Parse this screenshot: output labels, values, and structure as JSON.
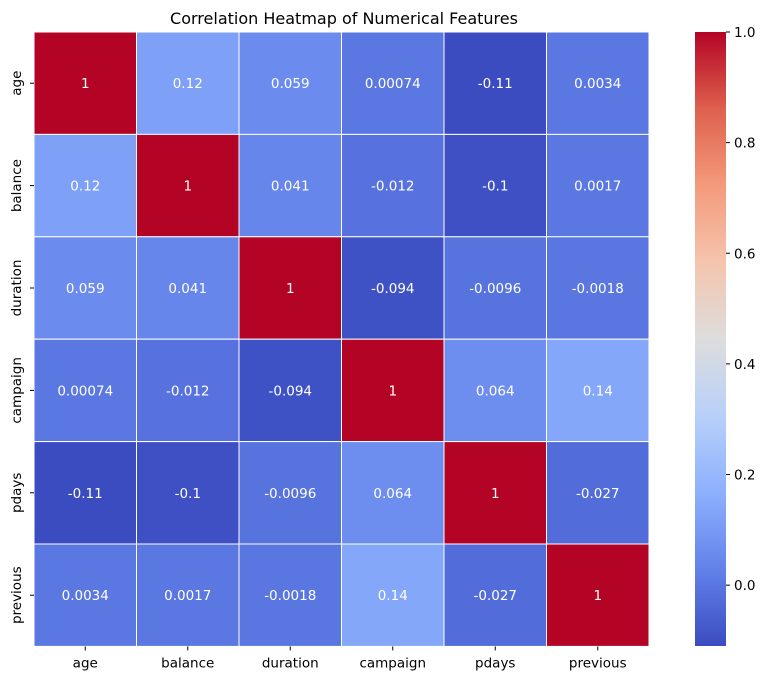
{
  "chart_data": {
    "type": "heatmap",
    "title": "Correlation Heatmap of Numerical Features",
    "xlabel": "",
    "ylabel": "",
    "x_labels": [
      "age",
      "balance",
      "duration",
      "campaign",
      "pdays",
      "previous"
    ],
    "y_labels": [
      "age",
      "balance",
      "duration",
      "campaign",
      "pdays",
      "previous"
    ],
    "values": [
      [
        1,
        0.12,
        0.059,
        0.00074,
        -0.11,
        0.0034
      ],
      [
        0.12,
        1,
        0.041,
        -0.012,
        -0.1,
        0.0017
      ],
      [
        0.059,
        0.041,
        1,
        -0.094,
        -0.0096,
        -0.0018
      ],
      [
        0.00074,
        -0.012,
        -0.094,
        1,
        0.064,
        0.14
      ],
      [
        -0.11,
        -0.1,
        -0.0096,
        0.064,
        1,
        -0.027
      ],
      [
        0.0034,
        0.0017,
        -0.0018,
        0.14,
        -0.027,
        1
      ]
    ],
    "cell_text": [
      [
        "1",
        "0.12",
        "0.059",
        "0.00074",
        "-0.11",
        "0.0034"
      ],
      [
        "0.12",
        "1",
        "0.041",
        "-0.012",
        "-0.1",
        "0.0017"
      ],
      [
        "0.059",
        "0.041",
        "1",
        "-0.094",
        "-0.0096",
        "-0.0018"
      ],
      [
        "0.00074",
        "-0.012",
        "-0.094",
        "1",
        "0.064",
        "0.14"
      ],
      [
        "-0.11",
        "-0.1",
        "-0.0096",
        "0.064",
        "1",
        "-0.027"
      ],
      [
        "0.0034",
        "0.0017",
        "-0.0018",
        "0.14",
        "-0.027",
        "1"
      ]
    ],
    "colormap": "coolwarm",
    "colorbar": {
      "range": [
        -0.11,
        1.0
      ],
      "ticks": [
        0.0,
        0.2,
        0.4,
        0.6,
        0.8,
        1.0
      ],
      "tick_labels": [
        "0.0",
        "0.2",
        "0.4",
        "0.6",
        "0.8",
        "1.0"
      ]
    },
    "cell_border_color": "#ffffff",
    "grid": false,
    "legend": "colorbar-right"
  }
}
